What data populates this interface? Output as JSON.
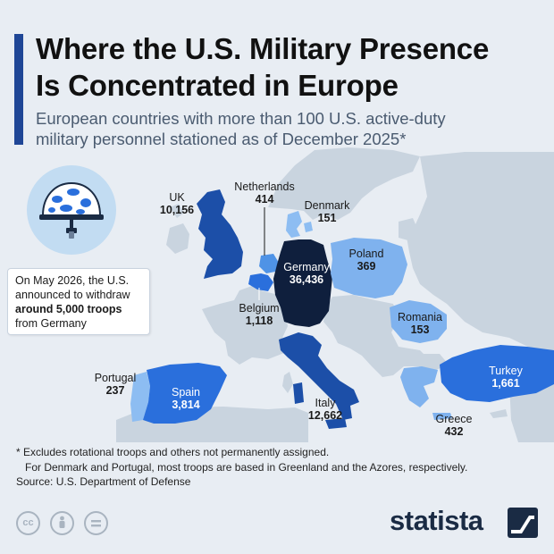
{
  "title_line1": "Where the U.S. Military Presence",
  "title_line2": "Is Concentrated in Europe",
  "subtitle_line1": "European countries with more than 100 U.S. active-duty",
  "subtitle_line2": "military personnel stationed as of December 2025*",
  "callout": {
    "line1": "On May 2026, the U.S.",
    "line2": "announced to withdraw",
    "line3_bold": "around 5,000 troops",
    "line4": "from Germany"
  },
  "countries": {
    "uk": {
      "name": "UK",
      "value": "10,156",
      "color": "#1c4fa8"
    },
    "netherlands": {
      "name": "Netherlands",
      "value": "414",
      "color": "#4f93e6"
    },
    "denmark": {
      "name": "Denmark",
      "value": "151",
      "color": "#8dbdf2"
    },
    "poland": {
      "name": "Poland",
      "value": "369",
      "color": "#7fb2ee"
    },
    "germany": {
      "name": "Germany",
      "value": "36,436",
      "color": "#0f1f3d"
    },
    "belgium": {
      "name": "Belgium",
      "value": "1,118",
      "color": "#2a6fdc"
    },
    "romania": {
      "name": "Romania",
      "value": "153",
      "color": "#7fb2ee"
    },
    "portugal": {
      "name": "Portugal",
      "value": "237",
      "color": "#8dbdf2"
    },
    "spain": {
      "name": "Spain",
      "value": "3,814",
      "color": "#2a6fdc"
    },
    "italy": {
      "name": "Italy",
      "value": "12,662",
      "color": "#1c4fa8"
    },
    "turkey": {
      "name": "Turkey",
      "value": "1,661",
      "color": "#2a6fdc"
    },
    "greece": {
      "name": "Greece",
      "value": "432",
      "color": "#7fb2ee"
    }
  },
  "other_land_color": "#c9d4df",
  "sea_color": "#e8edf3",
  "footnote1": "* Excludes rotational troops and others not permanently assigned.",
  "footnote2": "For Denmark and Portugal, most troops are based in Greenland and the Azores, respectively.",
  "source": "Source: U.S. Department of Defense",
  "license_icons": [
    "cc",
    "by",
    "="
  ],
  "brand": "statista"
}
